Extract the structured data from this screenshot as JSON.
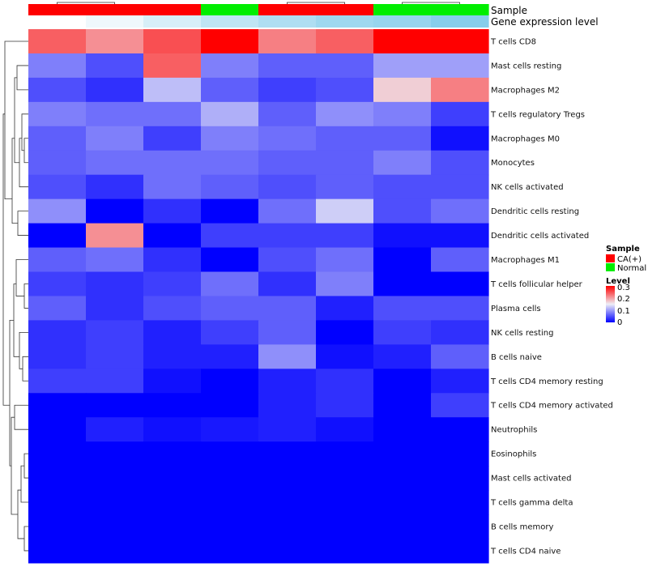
{
  "chart_data": {
    "type": "heatmap",
    "annotation_rows": [
      "Sample",
      "Gene expression level"
    ],
    "samples": [
      "CA(+)",
      "CA(+)",
      "CA(+)",
      "Normal",
      "CA(+)",
      "CA(+)",
      "Normal",
      "Normal"
    ],
    "gene_expression_levels": [
      0.0,
      0.02,
      0.05,
      0.08,
      0.1,
      0.12,
      0.13,
      0.15
    ],
    "rows": [
      "T cells CD8",
      "Mast cells resting",
      "Macrophages M2",
      "T cells regulatory  Tregs",
      "Macrophages M0",
      "Monocytes",
      "NK cells activated",
      "Dendritic cells resting",
      "Dendritic cells activated",
      "Macrophages M1",
      "T cells follicular helper",
      "Plasma cells",
      "NK cells resting",
      "B cells naive",
      "T cells CD4 memory resting",
      "T cells CD4 memory activated",
      "Neutrophils",
      "Eosinophils",
      "Mast cells activated",
      "T cells gamma delta",
      "B cells memory",
      "T cells CD4 naive"
    ],
    "values": [
      [
        0.24,
        0.21,
        0.25,
        0.3,
        0.22,
        0.24,
        0.3,
        0.3
      ],
      [
        0.08,
        0.05,
        0.24,
        0.08,
        0.06,
        0.06,
        0.1,
        0.1
      ],
      [
        0.05,
        0.03,
        0.12,
        0.06,
        0.04,
        0.05,
        0.17,
        0.22
      ],
      [
        0.08,
        0.07,
        0.07,
        0.11,
        0.06,
        0.09,
        0.08,
        0.04
      ],
      [
        0.06,
        0.08,
        0.04,
        0.08,
        0.07,
        0.06,
        0.06,
        0.01
      ],
      [
        0.06,
        0.07,
        0.07,
        0.07,
        0.06,
        0.06,
        0.08,
        0.05
      ],
      [
        0.05,
        0.03,
        0.07,
        0.06,
        0.05,
        0.06,
        0.05,
        0.05
      ],
      [
        0.09,
        0.0,
        0.03,
        0.0,
        0.07,
        0.13,
        0.05,
        0.07
      ],
      [
        0.0,
        0.21,
        0.0,
        0.04,
        0.04,
        0.04,
        0.01,
        0.01
      ],
      [
        0.06,
        0.07,
        0.03,
        0.0,
        0.05,
        0.07,
        0.0,
        0.06
      ],
      [
        0.04,
        0.03,
        0.04,
        0.07,
        0.03,
        0.08,
        0.0,
        0.0
      ],
      [
        0.06,
        0.03,
        0.05,
        0.06,
        0.06,
        0.02,
        0.05,
        0.05
      ],
      [
        0.03,
        0.04,
        0.02,
        0.04,
        0.06,
        0.0,
        0.04,
        0.03
      ],
      [
        0.03,
        0.04,
        0.02,
        0.02,
        0.09,
        0.01,
        0.02,
        0.06
      ],
      [
        0.04,
        0.04,
        0.01,
        0.0,
        0.02,
        0.03,
        0.0,
        0.02
      ],
      [
        0.0,
        0.0,
        0.0,
        0.0,
        0.02,
        0.03,
        0.0,
        0.04
      ],
      [
        0.0,
        0.02,
        0.01,
        0.015,
        0.02,
        0.01,
        0.0,
        0.0
      ],
      [
        0.0,
        0.0,
        0.0,
        0.0,
        0.0,
        0.0,
        0.0,
        0.0
      ],
      [
        0.0,
        0.0,
        0.0,
        0.0,
        0.0,
        0.0,
        0.0,
        0.0
      ],
      [
        0.0,
        0.0,
        0.0,
        0.0,
        0.0,
        0.0,
        0.0,
        0.0
      ],
      [
        0.0,
        0.0,
        0.0,
        0.0,
        0.0,
        0.0,
        0.0,
        0.0
      ],
      [
        0.0,
        0.0,
        0.0,
        0.0,
        0.0,
        0.0,
        0.0,
        0.0
      ]
    ],
    "color_scale": {
      "min": 0,
      "max": 0.3,
      "low_color": "#0000ff",
      "mid_color": "#eeeef6",
      "high_color": "#ff0000"
    },
    "legend": {
      "sample_title": "Sample",
      "sample_entries": [
        {
          "label": "CA(+)",
          "color": "#ff0000"
        },
        {
          "label": "Normal",
          "color": "#00ee00"
        }
      ],
      "level_title": "Level",
      "level_ticks": [
        "0.3",
        "0.2",
        "0.1",
        "0"
      ],
      "placement": "right"
    },
    "expression_scale": {
      "low_color": "#ffffff",
      "high_color": "#87ceeb"
    }
  }
}
